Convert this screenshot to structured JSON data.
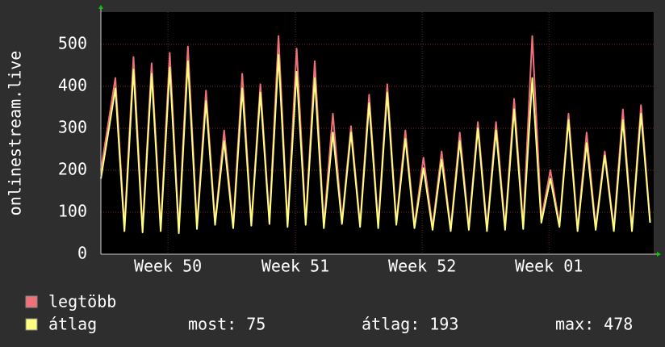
{
  "chart_data": {
    "type": "line",
    "y_label": "onlinestream.live",
    "x": [
      0,
      0.8,
      1.3,
      1.8,
      2.3,
      2.8,
      3.3,
      3.8,
      4.3,
      4.8,
      5.3,
      5.8,
      6.3,
      6.8,
      7.3,
      7.8,
      8.3,
      8.8,
      9.3,
      9.8,
      10.3,
      10.8,
      11.3,
      11.8,
      12.3,
      12.8,
      13.3,
      13.8,
      14.3,
      14.8,
      15.3,
      15.8,
      16.3,
      16.8,
      17.3,
      17.8,
      18.3,
      18.8,
      19.3,
      19.8,
      20.3,
      20.8,
      21.3,
      21.8,
      22.3,
      22.8,
      23.3,
      23.8,
      24.3,
      24.8,
      25.3,
      25.8,
      26.3,
      26.8,
      27.3,
      27.8,
      28.3,
      28.8,
      29.3,
      29.8,
      30.3
    ],
    "series": [
      {
        "name": "legtöbb",
        "color": "#f0717a",
        "values": [
          200,
          420,
          65,
          470,
          60,
          455,
          62,
          480,
          58,
          495,
          70,
          390,
          75,
          295,
          68,
          430,
          72,
          405,
          80,
          520,
          70,
          490,
          75,
          460,
          70,
          335,
          78,
          305,
          72,
          380,
          70,
          405,
          75,
          295,
          68,
          230,
          65,
          245,
          60,
          290,
          65,
          315,
          62,
          315,
          65,
          370,
          68,
          520,
          85,
          200,
          70,
          335,
          60,
          290,
          65,
          245,
          62,
          345,
          60,
          355,
          78
        ]
      },
      {
        "name": "átlag",
        "color": "#ffff80",
        "values": [
          180,
          395,
          55,
          440,
          52,
          430,
          55,
          445,
          50,
          460,
          60,
          365,
          70,
          270,
          62,
          395,
          68,
          385,
          72,
          475,
          65,
          435,
          70,
          420,
          62,
          290,
          72,
          290,
          65,
          360,
          62,
          385,
          70,
          275,
          62,
          205,
          58,
          225,
          55,
          270,
          58,
          300,
          55,
          295,
          58,
          345,
          60,
          420,
          75,
          180,
          65,
          320,
          55,
          265,
          58,
          235,
          55,
          320,
          55,
          335,
          75
        ]
      }
    ],
    "stats": [
      {
        "label": "most:",
        "value": 75
      },
      {
        "label": "átlag:",
        "value": 193
      },
      {
        "label": "max:",
        "value": 478
      }
    ],
    "xlim": [
      0,
      30.5
    ],
    "xticks": [
      {
        "value": 3.7,
        "label": "Week 50"
      },
      {
        "value": 10.73,
        "label": "Week 51"
      },
      {
        "value": 17.73,
        "label": "Week 52"
      },
      {
        "value": 24.72,
        "label": "Week 01"
      }
    ],
    "ylim": [
      0,
      577
    ],
    "yticks": [
      0,
      100,
      200,
      300,
      400,
      500
    ],
    "grid": true
  }
}
